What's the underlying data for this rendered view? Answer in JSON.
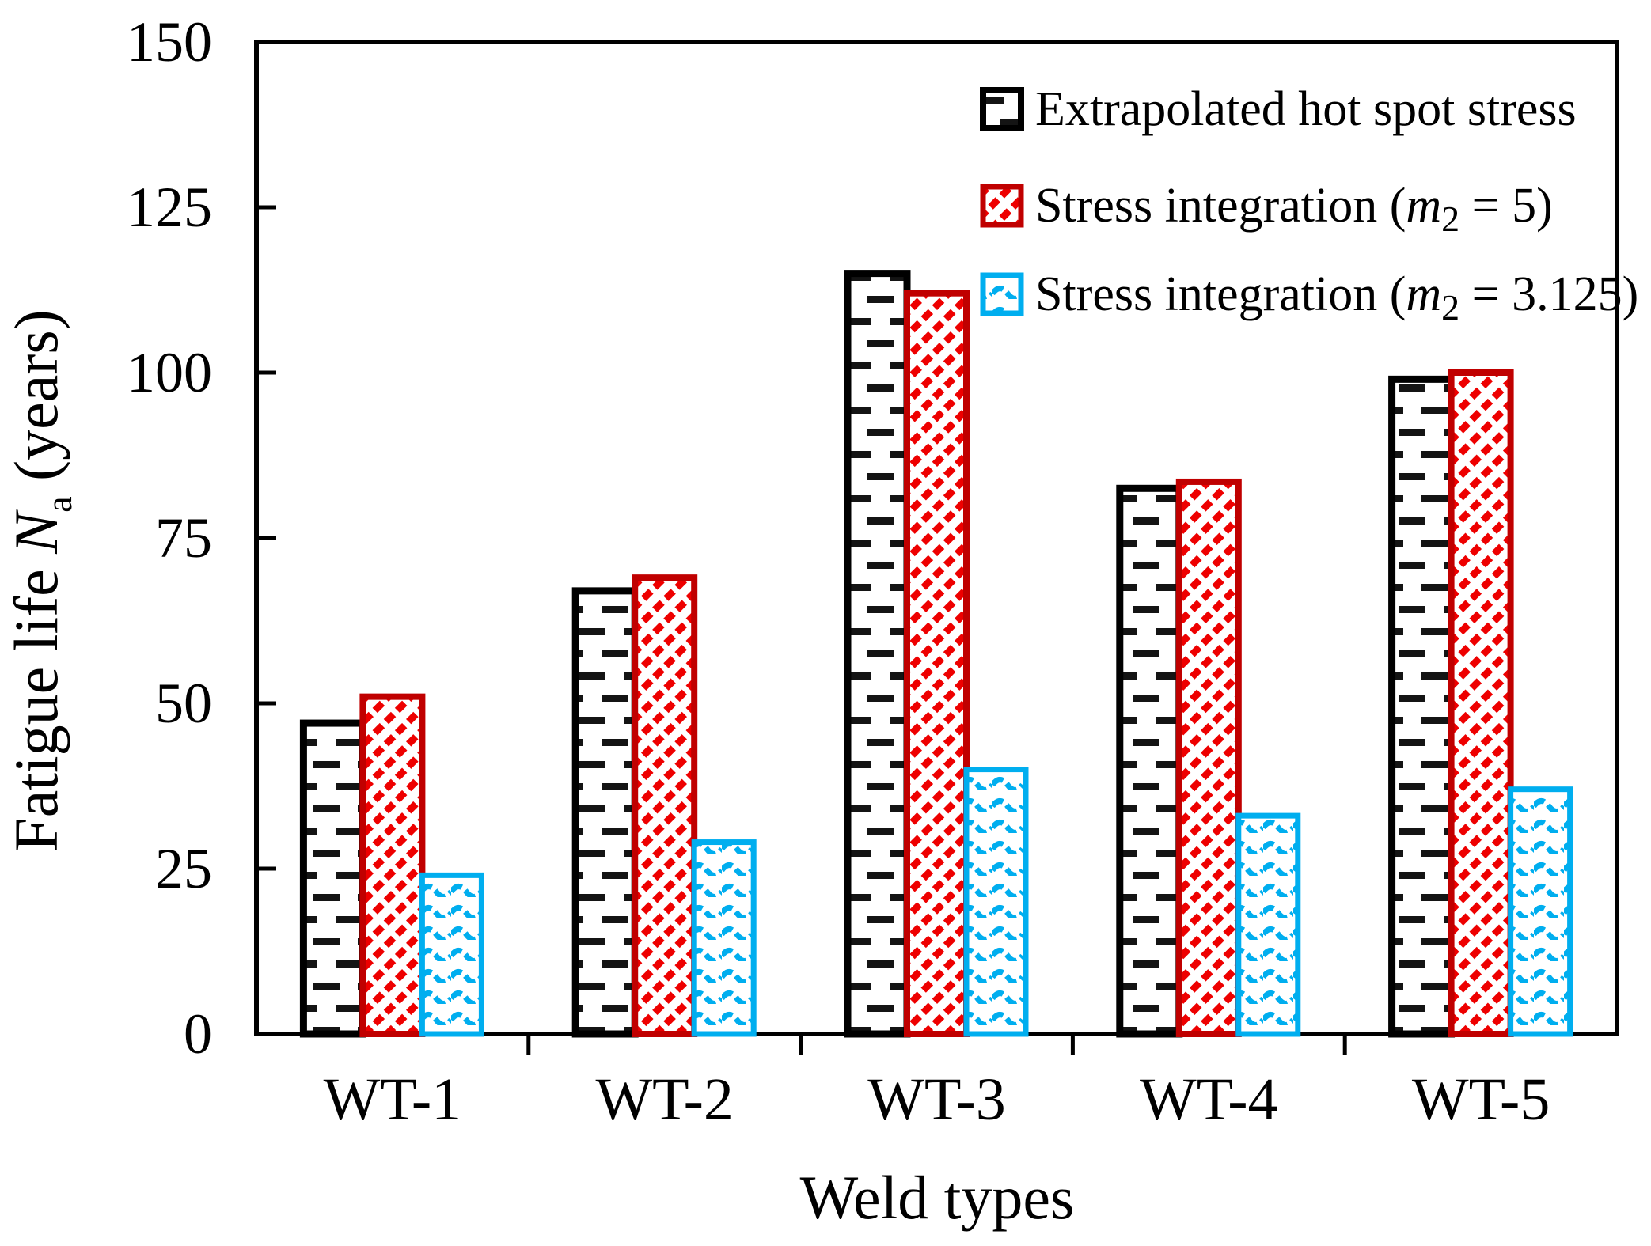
{
  "labels": {
    "x_title": "Weld types",
    "y_pre": "Fatigue life ",
    "y_var": "N",
    "y_sub": "a",
    "y_post": " (years)"
  },
  "legend": {
    "items": [
      {
        "pre": "Extrapolated hot spot stress",
        "var": "",
        "sub": "",
        "post": ""
      },
      {
        "pre": "Stress integration (",
        "var": "m",
        "sub": "2",
        "post": " = 5)"
      },
      {
        "pre": "Stress integration (",
        "var": "m",
        "sub": "2",
        "post": " = 3.125)"
      }
    ]
  },
  "chart_data": {
    "type": "bar",
    "categories": [
      "WT-1",
      "WT-2",
      "WT-3",
      "WT-4",
      "WT-5"
    ],
    "series": [
      {
        "name": "Extrapolated hot spot stress",
        "values": [
          47,
          67,
          115,
          82.5,
          99
        ],
        "fill_pattern": "horizontal-dashes",
        "color": "#000000",
        "border_color": "#000000"
      },
      {
        "name": "Stress integration (m2 = 5)",
        "values": [
          51,
          69,
          112,
          83.5,
          100
        ],
        "fill_pattern": "diagonal-hatch",
        "color": "#EE0000",
        "border_color": "#C00000"
      },
      {
        "name": "Stress integration (m2 = 3.125)",
        "values": [
          24,
          29,
          40,
          33,
          37
        ],
        "fill_pattern": "waves",
        "color": "#00AEEF",
        "border_color": "#00AEEF"
      }
    ],
    "xlabel": "Weld types",
    "ylabel": "Fatigue life Na (years)",
    "ylim": [
      0,
      150
    ],
    "y_ticks": [
      0,
      25,
      50,
      75,
      100,
      125,
      150
    ],
    "legend_position": "inside-top-right",
    "grid": false
  }
}
